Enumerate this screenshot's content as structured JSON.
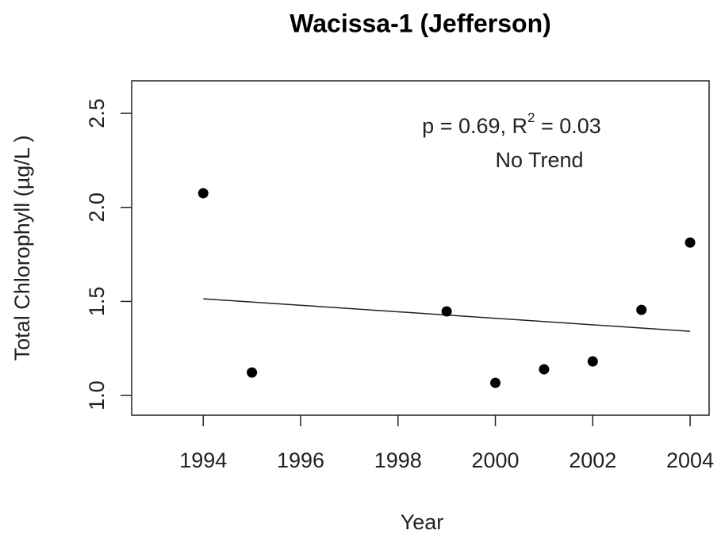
{
  "chart_data": {
    "type": "scatter",
    "title": "Wacissa-1 (Jefferson)",
    "x_label": "Year",
    "y_label": "Total Chlorophyll (µg/L )",
    "x": [
      1994,
      1995,
      1999,
      2000,
      2001,
      2002,
      2003,
      2004
    ],
    "values": [
      2.075,
      1.122,
      1.447,
      1.067,
      1.139,
      1.181,
      1.455,
      1.813
    ],
    "color": "#000000",
    "trend_line": {
      "x": [
        1994,
        2004
      ],
      "values": [
        1.514,
        1.341
      ]
    },
    "annotation": {
      "text": "p = 0.69, R",
      "superscript": "2",
      "text_after": " = 0.03",
      "verdict": "No Trend"
    },
    "xlim": [
      1992.53,
      2004.39
    ],
    "xticks": [
      1994,
      1996,
      1998,
      2000,
      2002,
      2004
    ],
    "ylim": [
      0.895,
      2.673
    ],
    "yticks": [
      {
        "value": 1,
        "label": "1.0"
      },
      1.5,
      {
        "value": 2,
        "label": "2.0"
      },
      {
        "value": 2.5,
        "label": "2.5"
      }
    ],
    "grid": false
  }
}
